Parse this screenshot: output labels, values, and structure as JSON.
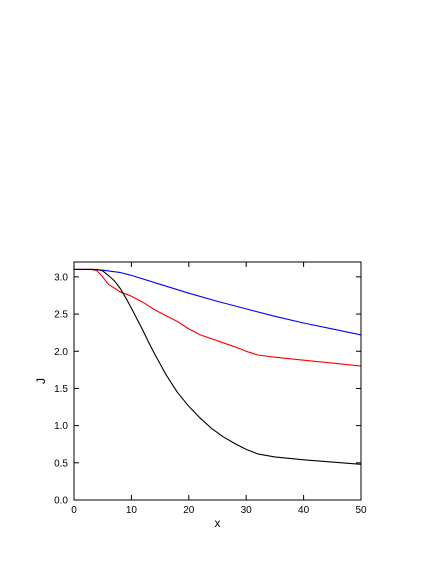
{
  "chart_data": {
    "type": "line",
    "xlabel": "x",
    "ylabel": "J",
    "xlim": [
      0,
      50
    ],
    "ylim": [
      0,
      3.2
    ],
    "x_ticks": [
      0,
      10,
      20,
      30,
      40,
      50
    ],
    "y_ticks": [
      0.0,
      0.5,
      1.0,
      1.5,
      2.0,
      2.5,
      3.0
    ],
    "x_tick_labels": [
      "0",
      "10",
      "20",
      "30",
      "40",
      "50"
    ],
    "y_tick_labels": [
      "0.0",
      "0.5",
      "1.0",
      "1.5",
      "2.0",
      "2.5",
      "3.0"
    ],
    "grid": false,
    "legend": "none",
    "series": [
      {
        "color": "#0000ff",
        "x": [
          0,
          3,
          5,
          8,
          10,
          15,
          20,
          25,
          30,
          35,
          40,
          45,
          50
        ],
        "y": [
          3.1,
          3.1,
          3.09,
          3.06,
          3.02,
          2.9,
          2.78,
          2.67,
          2.57,
          2.47,
          2.38,
          2.3,
          2.22
        ]
      },
      {
        "color": "#ff0000",
        "x": [
          0,
          3,
          4,
          5,
          6,
          7,
          8,
          10,
          12,
          14,
          16,
          18,
          20,
          22,
          25,
          28,
          30,
          32,
          35,
          40,
          45,
          50
        ],
        "y": [
          3.1,
          3.1,
          3.08,
          3.0,
          2.9,
          2.85,
          2.8,
          2.74,
          2.66,
          2.56,
          2.48,
          2.4,
          2.3,
          2.22,
          2.14,
          2.06,
          2.0,
          1.95,
          1.92,
          1.88,
          1.84,
          1.8
        ]
      },
      {
        "color": "#000000",
        "x": [
          0,
          3,
          4,
          5,
          6,
          7,
          8,
          9,
          10,
          11,
          12,
          13,
          14,
          15,
          16,
          18,
          20,
          22,
          24,
          26,
          28,
          30,
          32,
          35,
          40,
          45,
          50
        ],
        "y": [
          3.1,
          3.1,
          3.1,
          3.08,
          3.02,
          2.95,
          2.85,
          2.72,
          2.58,
          2.43,
          2.28,
          2.12,
          1.97,
          1.83,
          1.69,
          1.45,
          1.26,
          1.1,
          0.96,
          0.85,
          0.76,
          0.68,
          0.62,
          0.58,
          0.54,
          0.51,
          0.48
        ]
      }
    ]
  }
}
